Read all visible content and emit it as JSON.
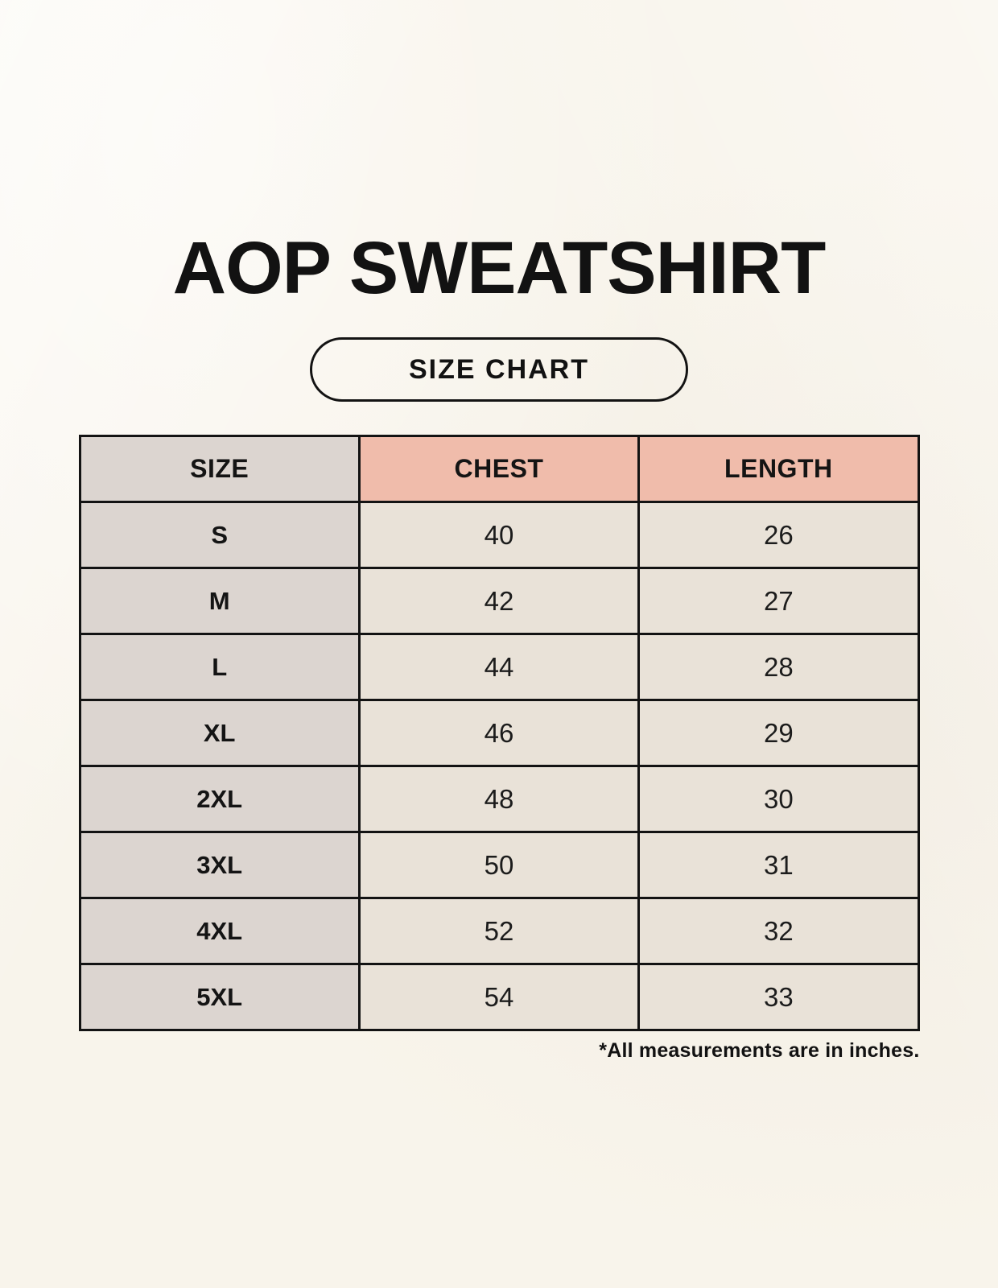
{
  "header": {
    "title": "AOP SWEATSHIRT",
    "badge": "SIZE CHART"
  },
  "footnote": "*All measurements are in inches.",
  "colors": {
    "page_background": "#f8f4eb",
    "size_column_background": "#dcd5d0",
    "header_accent_background": "#f0bcab",
    "value_cell_background": "#e9e2d8",
    "border": "#131313",
    "text": "#141414"
  },
  "chart_data": {
    "type": "table",
    "title": "AOP SWEATSHIRT SIZE CHART",
    "columns": [
      "SIZE",
      "CHEST",
      "LENGTH"
    ],
    "rows": [
      {
        "size": "S",
        "chest": 40,
        "length": 26
      },
      {
        "size": "M",
        "chest": 42,
        "length": 27
      },
      {
        "size": "L",
        "chest": 44,
        "length": 28
      },
      {
        "size": "XL",
        "chest": 46,
        "length": 29
      },
      {
        "size": "2XL",
        "chest": 48,
        "length": 30
      },
      {
        "size": "3XL",
        "chest": 50,
        "length": 31
      },
      {
        "size": "4XL",
        "chest": 52,
        "length": 32
      },
      {
        "size": "5XL",
        "chest": 54,
        "length": 33
      }
    ],
    "units": "inches",
    "layout": {
      "header_row": true,
      "grid": true
    }
  }
}
